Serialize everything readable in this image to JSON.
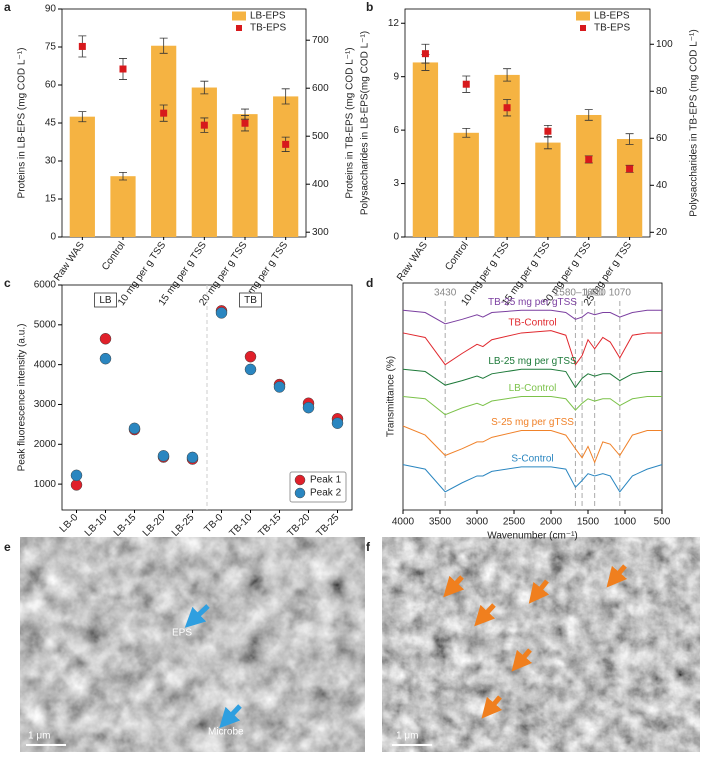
{
  "chart_data": [
    {
      "panel": "a",
      "type": "bar",
      "ylabel": "Proteins in  LB-EPS (mg COD L⁻¹)",
      "y2label": "Proteins in TB-EPS (mg COD L⁻¹)",
      "categories": [
        "Raw WAS",
        "Control",
        "10 mg per g TSS",
        "15 mg per g TSS",
        "20 mg per g TSS",
        "25 mg per g TSS"
      ],
      "series": [
        {
          "name": "LB-EPS",
          "kind": "bar",
          "color": "#f5b342",
          "values": [
            47.5,
            24,
            75.5,
            59,
            48.5,
            55.5
          ],
          "errors": [
            2,
            1.5,
            3,
            2.5,
            2,
            3
          ]
        },
        {
          "name": "TB-EPS",
          "kind": "square",
          "axis": "y2",
          "color": "#d7191c",
          "values": [
            687,
            640,
            548,
            523,
            527,
            483
          ],
          "errors": [
            22,
            22,
            17,
            15,
            16,
            15
          ]
        }
      ],
      "ylim": [
        0,
        90
      ],
      "yticks": [
        0,
        15,
        30,
        45,
        60,
        75,
        90
      ],
      "y2lim": [
        290,
        765
      ],
      "y2ticks": [
        300,
        400,
        500,
        600,
        700
      ],
      "legend": "upper right"
    },
    {
      "panel": "b",
      "type": "bar",
      "ylabel": "Polysaccharides in LB-EPS(mg COD L⁻¹)",
      "y2label": "Polysaccharides in TB-EPS (mg COD L⁻¹)",
      "categories": [
        "Raw WAS",
        "Control",
        "10 mg per g TSS",
        "15 mg per g TSS",
        "20 mg per g TSS",
        "25 mg per g TSS"
      ],
      "series": [
        {
          "name": "LB-EPS",
          "kind": "bar",
          "color": "#f5b342",
          "values": [
            9.8,
            5.85,
            9.1,
            5.3,
            6.85,
            5.5
          ],
          "errors": [
            0.45,
            0.25,
            0.35,
            0.35,
            0.3,
            0.3
          ]
        },
        {
          "name": "TB-EPS",
          "kind": "square",
          "axis": "y2",
          "color": "#d7191c",
          "values": [
            96,
            83,
            73,
            63,
            51,
            47
          ],
          "errors": [
            4,
            3.5,
            3.5,
            2.5,
            1.5,
            1.5
          ]
        }
      ],
      "ylim": [
        0,
        12.8
      ],
      "yticks": [
        0,
        3,
        6,
        9,
        12
      ],
      "y2lim": [
        18,
        115
      ],
      "y2ticks": [
        20,
        40,
        60,
        80,
        100
      ],
      "legend": "upper right"
    },
    {
      "panel": "c",
      "type": "scatter",
      "ylabel": "Peak fluorescence intensity (a.u.)",
      "categories": [
        "LB-0",
        "LB-10",
        "LB-15",
        "LB-20",
        "LB-25",
        "TB-0",
        "TB-10",
        "TB-15",
        "TB-20",
        "TB-25"
      ],
      "group_labels": [
        "LB",
        "TB"
      ],
      "series": [
        {
          "name": "Peak 1",
          "color": "#e0202a",
          "values": [
            980,
            4650,
            2370,
            1680,
            1630,
            5350,
            4200,
            3500,
            3030,
            2640
          ]
        },
        {
          "name": "Peak 2",
          "color": "#2a86c0",
          "values": [
            1220,
            4150,
            2400,
            1710,
            1670,
            5300,
            3880,
            3440,
            2920,
            2530
          ]
        }
      ],
      "ylim": [
        350,
        6000
      ],
      "yticks": [
        1000,
        2000,
        3000,
        4000,
        5000,
        6000
      ],
      "legend": "lower right"
    },
    {
      "panel": "d",
      "type": "line",
      "xlabel": "Wavenumber (cm⁻¹)",
      "ylabel": "Transmittance (%)",
      "x": [
        4000,
        3700,
        3430,
        3200,
        3000,
        2920,
        2800,
        2400,
        2000,
        1800,
        1670,
        1580,
        1500,
        1410,
        1300,
        1200,
        1070,
        900,
        700,
        500
      ],
      "xlim": [
        4000,
        500
      ],
      "xticks": [
        4000,
        3500,
        3000,
        2500,
        2000,
        1500,
        1000,
        500
      ],
      "ylim": [
        0,
        100
      ],
      "markers": [
        {
          "values": [
            3430
          ],
          "label": "3430"
        },
        {
          "values": [
            1670,
            1580
          ],
          "label": "1580–1670"
        },
        {
          "values": [
            1410
          ],
          "label": "1410"
        },
        {
          "values": [
            1070
          ],
          "label": "1070"
        }
      ],
      "series": [
        {
          "name": "TB-25 mg per gTSS",
          "color": "#7b3fa0",
          "values": [
            88,
            87,
            82,
            84,
            86,
            85,
            87,
            88,
            88,
            87,
            84,
            85,
            87,
            86,
            87,
            87,
            85,
            87,
            88,
            88
          ]
        },
        {
          "name": "TB-Control",
          "color": "#e0282e",
          "values": [
            78,
            76,
            64,
            69,
            73,
            72,
            75,
            78,
            79,
            77,
            64,
            68,
            75,
            71,
            76,
            74,
            67,
            77,
            78,
            78
          ]
        },
        {
          "name": "LB-25 mg per gTSS",
          "color": "#1e7a3a",
          "values": [
            62,
            61,
            55,
            57,
            59,
            58,
            60,
            62,
            62,
            61,
            54,
            58,
            60,
            59,
            60,
            60,
            57,
            60,
            61,
            61
          ]
        },
        {
          "name": "LB-Control",
          "color": "#7cc24a",
          "values": [
            50,
            49,
            42,
            45,
            47,
            46,
            48,
            50,
            50,
            49,
            44,
            47,
            49,
            48,
            49,
            49,
            46,
            49,
            50,
            50
          ]
        },
        {
          "name": "S-25 mg per gTSS",
          "color": "#f0822a",
          "values": [
            37,
            33,
            24,
            27,
            30,
            30,
            32,
            35,
            35,
            33,
            27,
            23,
            28,
            21,
            30,
            29,
            24,
            33,
            35,
            35
          ]
        },
        {
          "name": "S-Control",
          "color": "#2a86c0",
          "values": [
            20,
            18,
            8,
            12,
            15,
            15,
            17,
            19,
            19,
            18,
            10,
            13,
            16,
            15,
            16,
            15,
            8,
            15,
            18,
            20
          ]
        }
      ]
    }
  ],
  "images": [
    {
      "panel": "e",
      "scale_bar": "1 μm",
      "labels": [
        "EPS",
        "Microbe"
      ]
    },
    {
      "panel": "f",
      "scale_bar": "1 μm"
    }
  ]
}
